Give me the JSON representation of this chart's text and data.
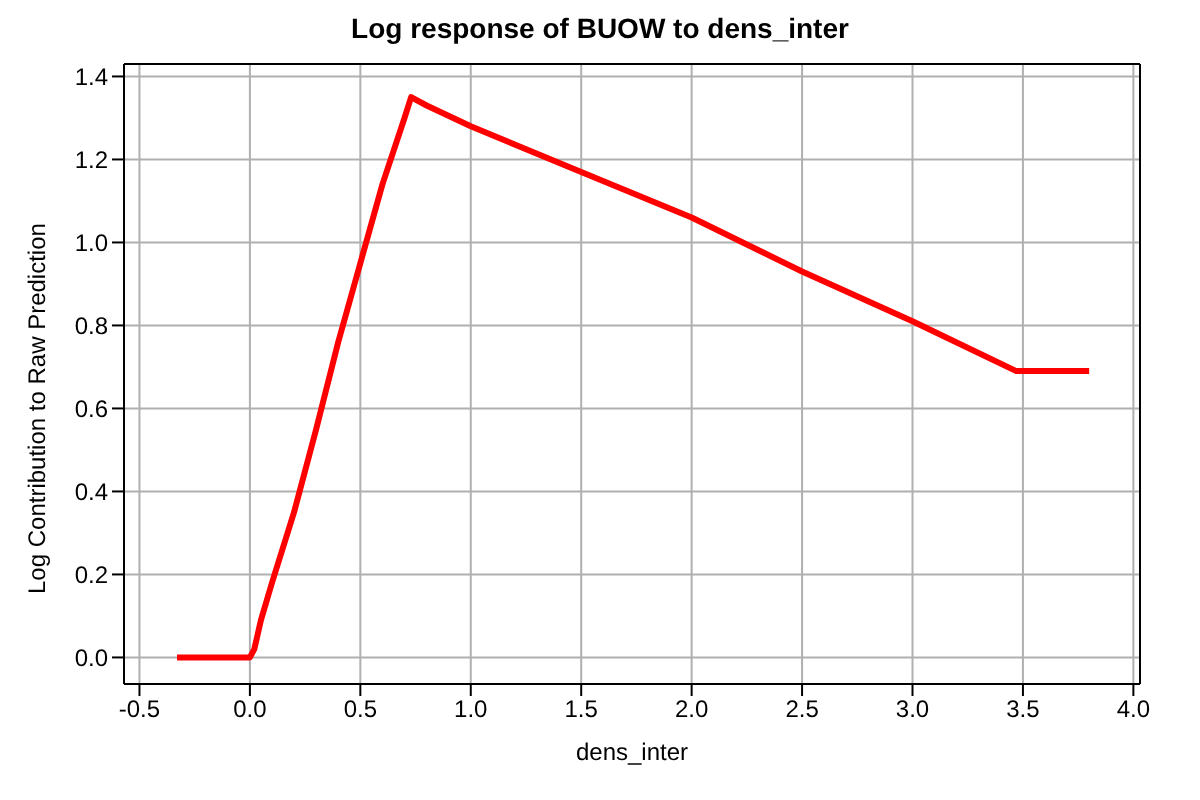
{
  "chart_data": {
    "type": "line",
    "title": "Log response of BUOW to dens_inter",
    "xlabel": "dens_inter",
    "ylabel": "Log Contribution to Raw Prediction",
    "x": [
      -0.33,
      0.0,
      0.02,
      0.05,
      0.1,
      0.2,
      0.3,
      0.4,
      0.5,
      0.6,
      0.7,
      0.73,
      0.8,
      1.0,
      1.5,
      2.0,
      2.5,
      3.0,
      3.47,
      3.8
    ],
    "series": [
      {
        "color": "#ff0000",
        "values": [
          0,
          0,
          0.02,
          0.09,
          0.18,
          0.35,
          0.55,
          0.76,
          0.95,
          1.14,
          1.3,
          1.35,
          1.33,
          1.28,
          1.17,
          1.06,
          0.93,
          0.81,
          0.69,
          0.69
        ]
      }
    ],
    "xlim": [
      -0.57,
      4.03
    ],
    "xticks": [
      {
        "value": -0.5,
        "label": "-0.5"
      },
      {
        "value": 0,
        "label": "0.0"
      },
      {
        "value": 0.5,
        "label": "0.5"
      },
      {
        "value": 1,
        "label": "1.0"
      },
      {
        "value": 1.5,
        "label": "1.5"
      },
      {
        "value": 2,
        "label": "2.0"
      },
      {
        "value": 2.5,
        "label": "2.5"
      },
      {
        "value": 3,
        "label": "3.0"
      },
      {
        "value": 3.5,
        "label": "3.5"
      },
      {
        "value": 4,
        "label": "4.0"
      }
    ],
    "ylim": [
      -0.064,
      1.43
    ],
    "yticks": [
      {
        "value": 0,
        "label": "0.0"
      },
      {
        "value": 0.2,
        "label": "0.2"
      },
      {
        "value": 0.4,
        "label": "0.4"
      },
      {
        "value": 0.6,
        "label": "0.6"
      },
      {
        "value": 0.8,
        "label": "0.8"
      },
      {
        "value": 1,
        "label": "1.0"
      },
      {
        "value": 1.2,
        "label": "1.2"
      },
      {
        "value": 1.4,
        "label": "1.4"
      }
    ],
    "grid": true,
    "marker": "none",
    "line_style": "solid"
  }
}
